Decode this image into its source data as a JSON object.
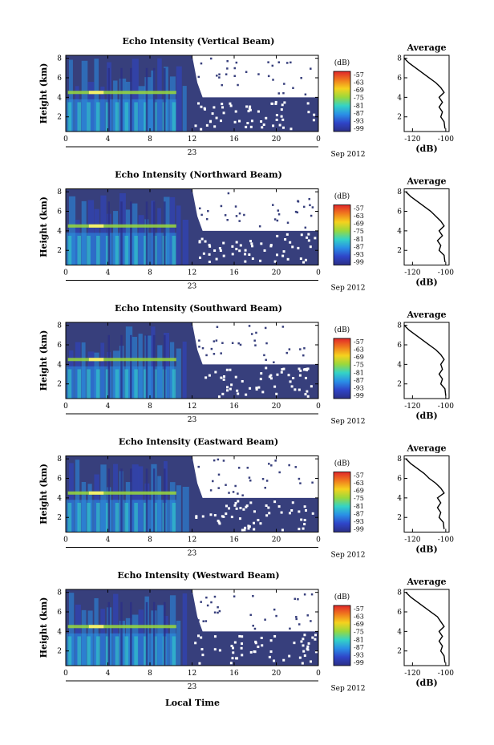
{
  "colorbar": {
    "unit": "(dB)",
    "labels": [
      "-57",
      "-63",
      "-69",
      "-75",
      "-81",
      "-87",
      "-93",
      "-99"
    ],
    "colors": [
      "#e0262a",
      "#f07a1e",
      "#f5d21e",
      "#9ad83c",
      "#34d3c6",
      "#2a8fe6",
      "#2f45c8",
      "#2b2f86"
    ]
  },
  "colors": {
    "background": "#373f7c",
    "no_data": "#ffffff",
    "bright_layer": "#f3ef6a"
  },
  "shared_axes": {
    "x_ticks": [
      "0",
      "4",
      "8",
      "12",
      "16",
      "20",
      "0"
    ],
    "x_day_label": "23",
    "x_month_label": "Sep 2012",
    "y_ticks": [
      "2",
      "4",
      "6",
      "8"
    ],
    "y_label": "Height (km)",
    "avg_title": "Average",
    "avg_unit": "(dB)",
    "avg_x_ticks": [
      "-120",
      "-100"
    ],
    "avg_y_ticks": [
      "2",
      "4",
      "6",
      "8"
    ],
    "xlabel": "Local Time"
  },
  "chart_data": [
    {
      "type": "heatmap",
      "title": "Echo Intensity (Vertical Beam)",
      "x_range_hours": [
        0,
        24
      ],
      "y_range_km": [
        0.5,
        8.3
      ],
      "data_top_km_vs_time": [
        [
          0,
          8.3
        ],
        [
          12,
          8.3
        ],
        [
          12.5,
          5.5
        ],
        [
          13,
          4.0
        ],
        [
          24,
          4.0
        ]
      ],
      "bright_layer_km": 4.5,
      "average_profile": {
        "xlim": [
          -125,
          -98
        ],
        "points": [
          [
            -100.5,
            0.8
          ],
          [
            -101,
            1.5
          ],
          [
            -103,
            2.0
          ],
          [
            -102,
            2.5
          ],
          [
            -104,
            3.0
          ],
          [
            -102,
            3.5
          ],
          [
            -104,
            4.0
          ],
          [
            -101,
            4.5
          ],
          [
            -103,
            5.0
          ],
          [
            -106,
            5.5
          ],
          [
            -110,
            6.0
          ],
          [
            -114,
            6.5
          ],
          [
            -118,
            7.0
          ],
          [
            -122,
            7.5
          ],
          [
            -125,
            8.0
          ]
        ]
      }
    },
    {
      "type": "heatmap",
      "title": "Echo Intensity (Northward Beam)",
      "x_range_hours": [
        0,
        24
      ],
      "y_range_km": [
        0.5,
        8.3
      ],
      "data_top_km_vs_time": [
        [
          0,
          8.3
        ],
        [
          12,
          8.3
        ],
        [
          12.5,
          5.5
        ],
        [
          13,
          4.0
        ],
        [
          24,
          4.0
        ]
      ],
      "bright_layer_km": 4.5,
      "average_profile": {
        "xlim": [
          -125,
          -98
        ],
        "points": [
          [
            -100.5,
            0.8
          ],
          [
            -101,
            1.5
          ],
          [
            -104,
            2.0
          ],
          [
            -103,
            2.5
          ],
          [
            -105,
            3.0
          ],
          [
            -102,
            3.5
          ],
          [
            -104,
            4.0
          ],
          [
            -101,
            4.5
          ],
          [
            -103,
            5.0
          ],
          [
            -106,
            5.5
          ],
          [
            -109,
            6.0
          ],
          [
            -113,
            6.5
          ],
          [
            -117,
            7.0
          ],
          [
            -121,
            7.5
          ],
          [
            -124,
            8.0
          ]
        ]
      }
    },
    {
      "type": "heatmap",
      "title": "Echo Intensity (Southward Beam)",
      "x_range_hours": [
        0,
        24
      ],
      "y_range_km": [
        0.5,
        8.3
      ],
      "data_top_km_vs_time": [
        [
          0,
          8.3
        ],
        [
          12,
          8.3
        ],
        [
          12.5,
          5.5
        ],
        [
          13,
          4.0
        ],
        [
          24,
          4.0
        ]
      ],
      "bright_layer_km": 4.5,
      "average_profile": {
        "xlim": [
          -125,
          -98
        ],
        "points": [
          [
            -100,
            0.8
          ],
          [
            -100.5,
            1.5
          ],
          [
            -103,
            2.0
          ],
          [
            -102,
            2.5
          ],
          [
            -104,
            3.0
          ],
          [
            -102,
            3.5
          ],
          [
            -103,
            4.0
          ],
          [
            -101,
            4.5
          ],
          [
            -103,
            5.0
          ],
          [
            -106,
            5.5
          ],
          [
            -110,
            6.0
          ],
          [
            -114,
            6.5
          ],
          [
            -118,
            7.0
          ],
          [
            -122,
            7.5
          ],
          [
            -125,
            8.0
          ]
        ]
      }
    },
    {
      "type": "heatmap",
      "title": "Echo Intensity (Eastward Beam)",
      "x_range_hours": [
        0,
        24
      ],
      "y_range_km": [
        0.5,
        8.3
      ],
      "data_top_km_vs_time": [
        [
          0,
          8.3
        ],
        [
          12,
          8.3
        ],
        [
          12.5,
          5.5
        ],
        [
          13,
          4.0
        ],
        [
          24,
          4.0
        ]
      ],
      "bright_layer_km": 4.5,
      "average_profile": {
        "xlim": [
          -125,
          -98
        ],
        "points": [
          [
            -101,
            0.8
          ],
          [
            -101.5,
            1.5
          ],
          [
            -104,
            2.0
          ],
          [
            -103,
            2.5
          ],
          [
            -105,
            3.0
          ],
          [
            -103,
            3.5
          ],
          [
            -105,
            4.0
          ],
          [
            -101,
            4.5
          ],
          [
            -103,
            5.0
          ],
          [
            -106,
            5.5
          ],
          [
            -110,
            6.0
          ],
          [
            -113,
            6.5
          ],
          [
            -117,
            7.0
          ],
          [
            -121,
            7.5
          ],
          [
            -124,
            8.0
          ]
        ]
      }
    },
    {
      "type": "heatmap",
      "title": "Echo Intensity (Westward Beam)",
      "x_range_hours": [
        0,
        24
      ],
      "y_range_km": [
        0.5,
        8.3
      ],
      "data_top_km_vs_time": [
        [
          0,
          8.3
        ],
        [
          12,
          8.3
        ],
        [
          12.5,
          5.5
        ],
        [
          13,
          4.0
        ],
        [
          24,
          4.0
        ]
      ],
      "bright_layer_km": 4.5,
      "average_profile": {
        "xlim": [
          -125,
          -98
        ],
        "points": [
          [
            -100.5,
            0.8
          ],
          [
            -101,
            1.5
          ],
          [
            -103,
            2.0
          ],
          [
            -102,
            2.5
          ],
          [
            -104,
            3.0
          ],
          [
            -102,
            3.5
          ],
          [
            -104,
            4.0
          ],
          [
            -101,
            4.5
          ],
          [
            -103,
            5.0
          ],
          [
            -105,
            5.5
          ],
          [
            -109,
            6.0
          ],
          [
            -113,
            6.5
          ],
          [
            -117,
            7.0
          ],
          [
            -121,
            7.5
          ],
          [
            -124,
            8.0
          ]
        ]
      }
    }
  ]
}
